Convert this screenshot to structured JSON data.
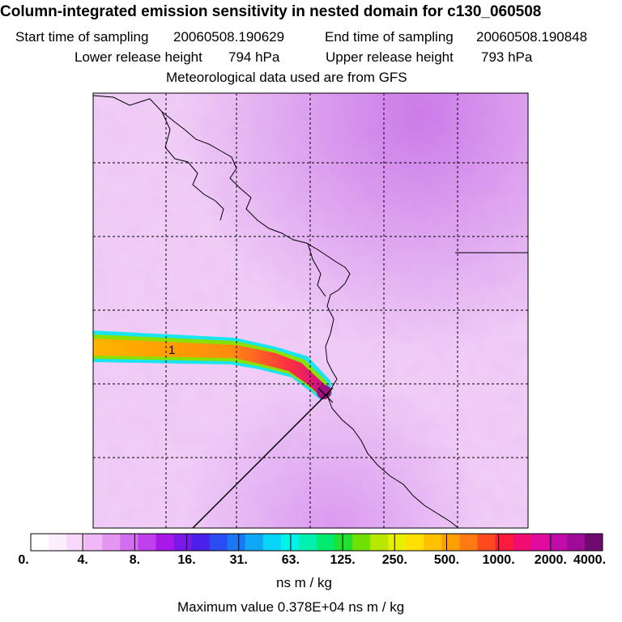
{
  "header": {
    "title": "Column-integrated emission sensitivity in nested domain for c130_060508",
    "start_label": "Start time of sampling",
    "start_value": "20060508.190629",
    "end_label": "End time of sampling",
    "end_value": "20060508.190848",
    "lower_label": "Lower release height",
    "lower_value": "794 hPa",
    "upper_label": "Upper release height",
    "upper_value": "793 hPa",
    "met_note": "Meteorological data used are from GFS"
  },
  "chart_data": {
    "type": "heatmap",
    "title": "Column-integrated emission sensitivity in nested domain for c130_060508",
    "plume_label": "1",
    "colorbar": {
      "tick_labels": [
        "0.",
        "4.",
        "8.",
        "16.",
        "31.",
        "63.",
        "125.",
        "250.",
        "500.",
        "1000.",
        "2000.",
        "4000."
      ],
      "tick_values": [
        0,
        4,
        8,
        16,
        31,
        63,
        125,
        250,
        500,
        1000,
        2000,
        4000
      ],
      "colors": [
        "#ffffff",
        "#fdeefe",
        "#f8d8fb",
        "#f0b8f6",
        "#e496f3",
        "#d46ef0",
        "#c040ee",
        "#a818e8",
        "#7a18ea",
        "#4a20ea",
        "#2a4cf0",
        "#1a78f4",
        "#10a8f6",
        "#08d4f8",
        "#00f2e8",
        "#00f0b0",
        "#00ea70",
        "#20e030",
        "#70e000",
        "#b8e800",
        "#e8f000",
        "#ffe000",
        "#ffc000",
        "#ffa000",
        "#ff7a10",
        "#ff4a20",
        "#ff1a40",
        "#f00c70",
        "#e00ca0",
        "#c00ca8",
        "#a00c98",
        "#700a70"
      ],
      "unit": "ns m / kg",
      "max_text": "Maximum value  0.378E+04 ns m / kg"
    },
    "plume": {
      "peak_value": 3780,
      "source_value": 3780,
      "band_value": 250
    }
  },
  "colors": {
    "background_field": "#ecc8f4",
    "field_light": "#f8e4fb",
    "field_dark": "#d294e8",
    "coast": "#000000",
    "grid": "#000000"
  }
}
